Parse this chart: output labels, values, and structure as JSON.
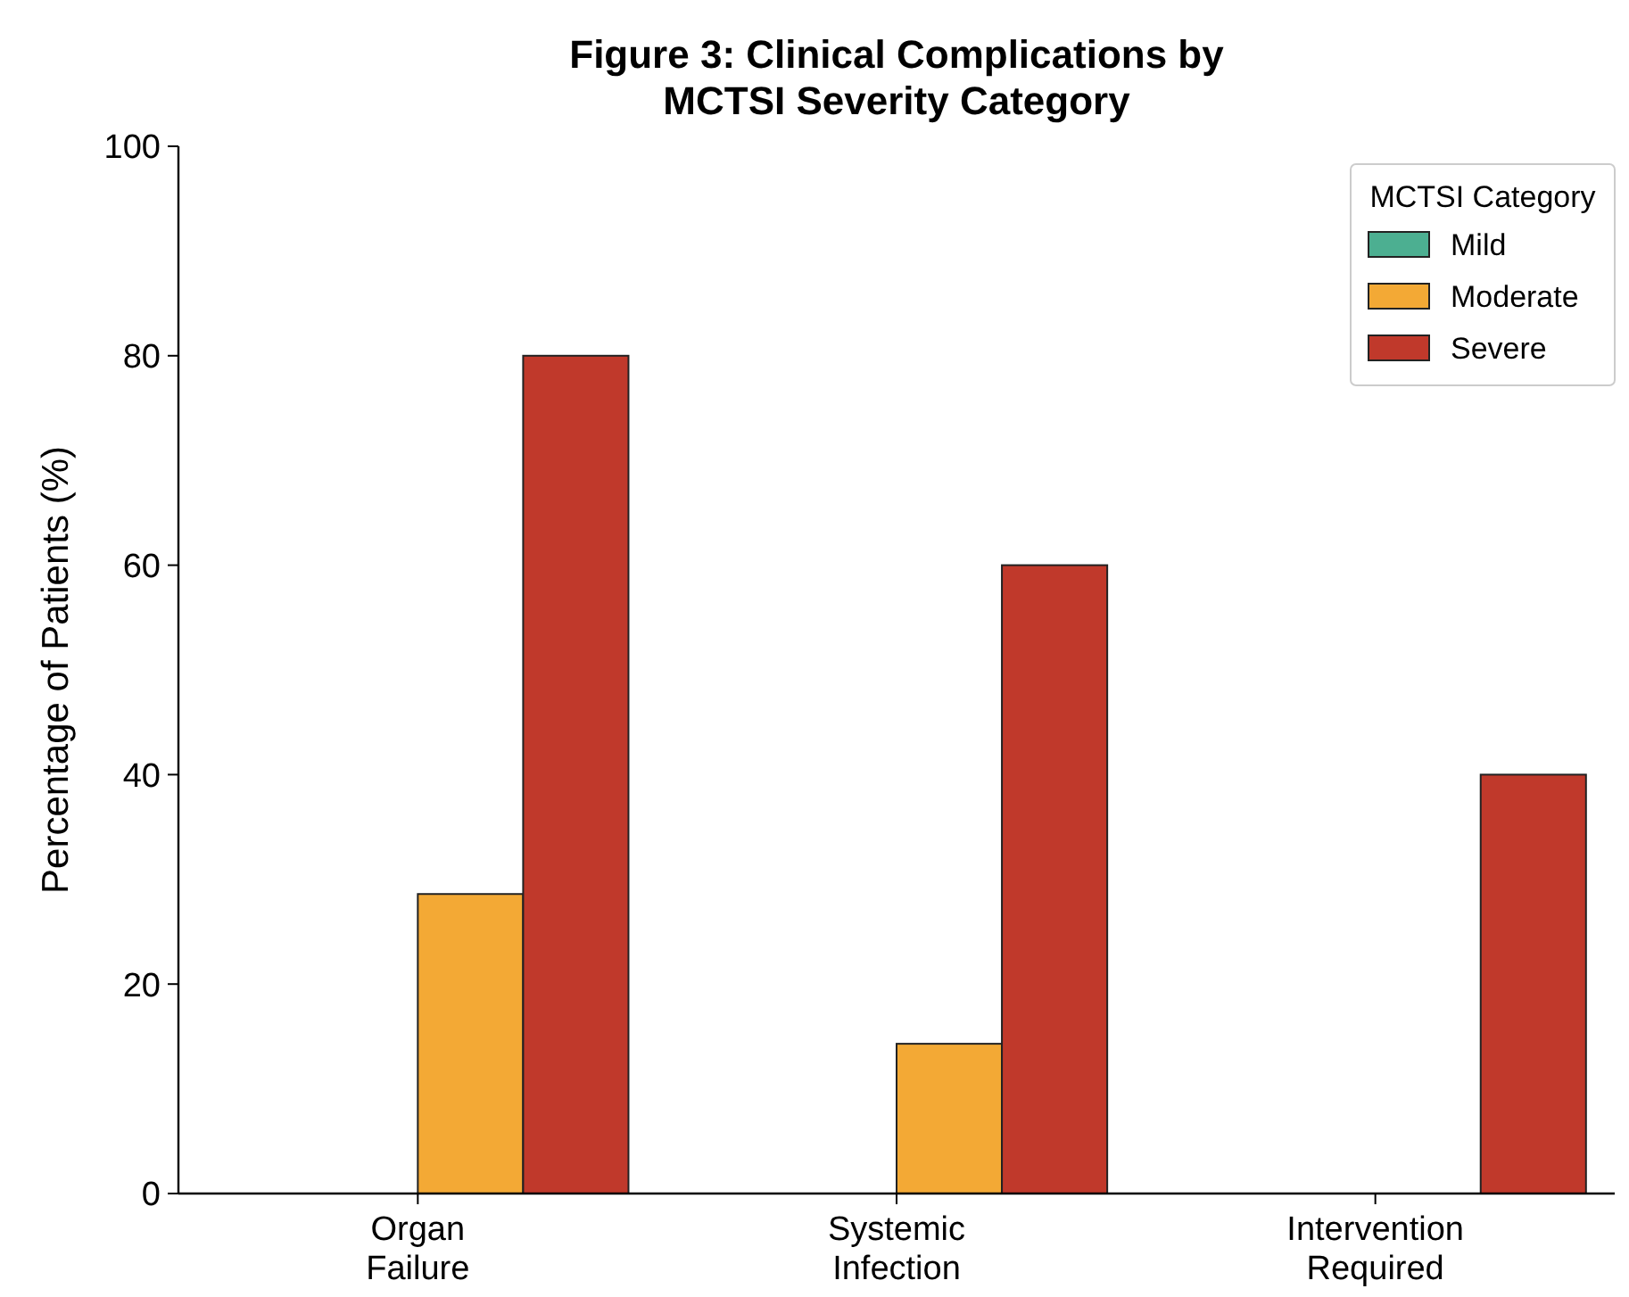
{
  "chart_data": {
    "type": "bar",
    "title": "Figure 3: Clinical Complications by\nMCTSI Severity Category",
    "ylabel": "Percentage of Patients (%)",
    "categories": [
      "Organ Failure",
      "Systemic Infection",
      "Intervention Required"
    ],
    "series": [
      {
        "name": "Mild",
        "color": "#4caf91",
        "values": [
          0,
          0,
          0
        ]
      },
      {
        "name": "Moderate",
        "color": "#f3a935",
        "values": [
          28.6,
          14.3,
          0
        ]
      },
      {
        "name": "Severe",
        "color": "#c0392b",
        "values": [
          80,
          60,
          40
        ]
      }
    ],
    "ylim": [
      0,
      100
    ],
    "yticks": [
      0,
      20,
      40,
      60,
      80,
      100
    ],
    "legend": "top right",
    "legend_title": "MCTSI Category",
    "grid": false
  }
}
